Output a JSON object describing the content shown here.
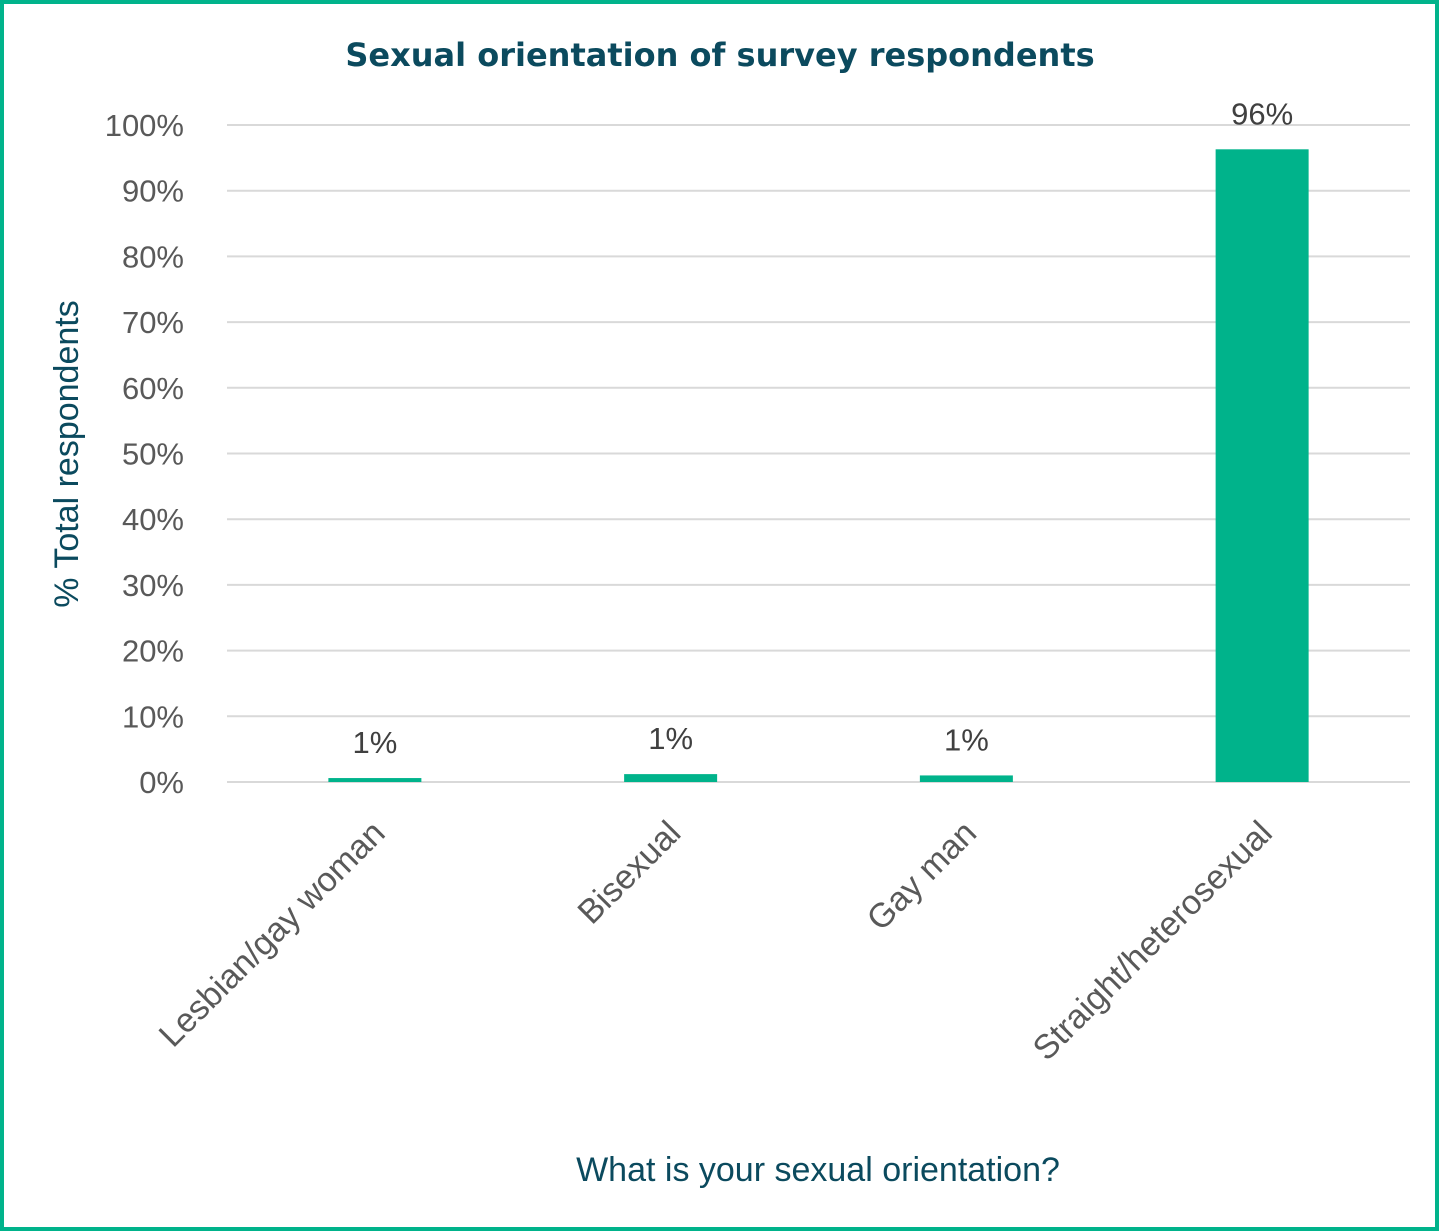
{
  "chart_data": {
    "type": "bar",
    "title": "Sexual orientation of survey respondents",
    "xlabel": "What is your sexual orientation?",
    "ylabel": "% Total respondents",
    "categories": [
      "Lesbian/gay woman",
      "Bisexual",
      "Gay man",
      "Straight/heterosexual"
    ],
    "values": [
      0.6,
      1.2,
      1.0,
      96.3
    ],
    "data_labels": [
      "1%",
      "1%",
      "1%",
      "96%"
    ],
    "ylim": [
      0,
      100
    ],
    "yticks": [
      0,
      10,
      20,
      30,
      40,
      50,
      60,
      70,
      80,
      90,
      100
    ],
    "ytick_labels": [
      "0%",
      "10%",
      "20%",
      "30%",
      "40%",
      "50%",
      "60%",
      "70%",
      "80%",
      "90%",
      "100%"
    ],
    "grid": true,
    "legend": "none",
    "colors": {
      "bar": "#00b38b",
      "frame": "#00b38b",
      "title": "#0b4a5e",
      "gridline": "#d9d9d9"
    }
  }
}
